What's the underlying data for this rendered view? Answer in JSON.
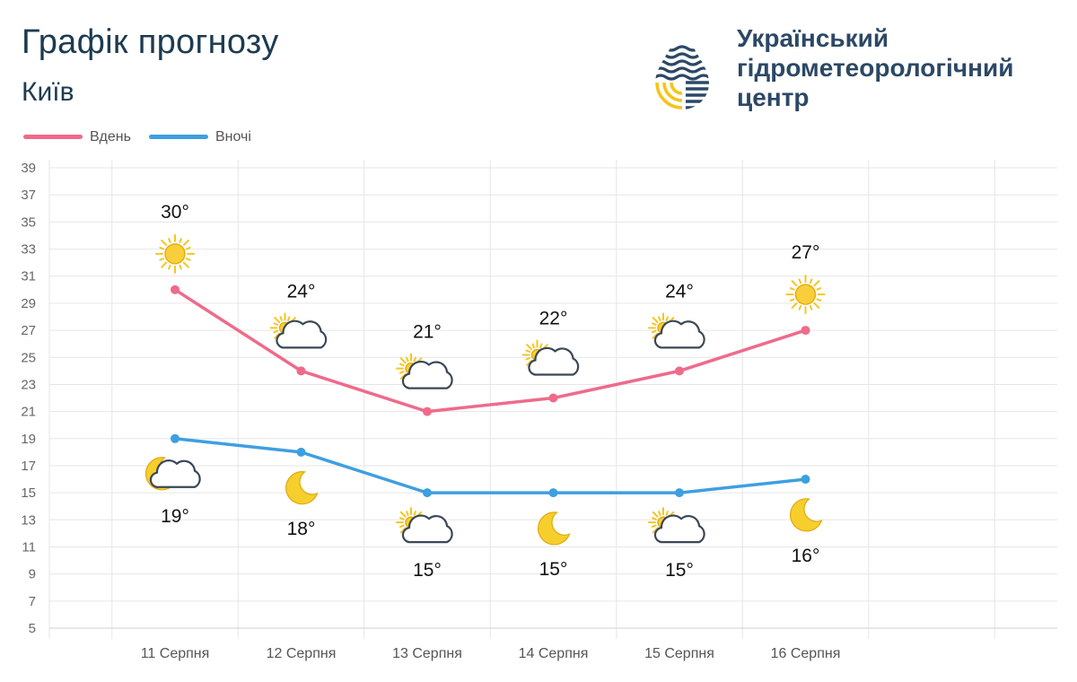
{
  "header": {
    "title": "Графік прогнозу",
    "city": "Київ"
  },
  "logo": {
    "lines": [
      "Український",
      "гідрометеорологічний",
      "центр"
    ],
    "icon": "water-drop-logo-icon",
    "colors": {
      "primary": "#2c4866",
      "accent": "#f5c518"
    }
  },
  "chart_data": {
    "type": "line",
    "categories": [
      "11 Серпня",
      "12 Серпня",
      "13 Серпня",
      "14 Серпня",
      "15 Серпня",
      "16 Серпня"
    ],
    "series": [
      {
        "name": "Вдень",
        "color": "#ee6b8b",
        "values": [
          30,
          24,
          21,
          22,
          24,
          27
        ],
        "labels": [
          "30°",
          "24°",
          "21°",
          "22°",
          "24°",
          "27°"
        ],
        "icons": [
          "sun-icon",
          "partly-cloudy-icon",
          "partly-cloudy-icon",
          "partly-cloudy-icon",
          "partly-cloudy-icon",
          "sun-icon"
        ]
      },
      {
        "name": "Вночі",
        "color": "#3e9fe0",
        "values": [
          19,
          18,
          15,
          15,
          15,
          16
        ],
        "labels": [
          "19°",
          "18°",
          "15°",
          "15°",
          "15°",
          "16°"
        ],
        "icons": [
          "moon-cloud-icon",
          "moon-icon",
          "partly-cloudy-icon",
          "moon-icon",
          "partly-cloudy-icon",
          "moon-icon"
        ]
      }
    ],
    "yticks": [
      5,
      7,
      9,
      11,
      13,
      15,
      17,
      19,
      21,
      23,
      25,
      27,
      29,
      31,
      33,
      35,
      37,
      39
    ],
    "ylim": [
      5,
      40
    ],
    "grid": true,
    "legend": "top-left"
  }
}
